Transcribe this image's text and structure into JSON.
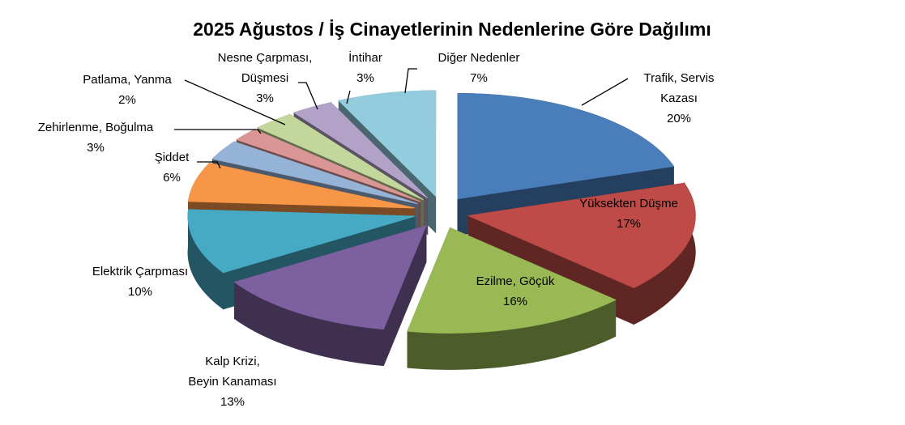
{
  "chart_data": {
    "type": "pie3d",
    "title": "2025 Ağustos / İş Cinayetlerinin Nedenlerine Göre Dağılımı",
    "labels": [
      [
        "Trafik, Servis",
        "Kazası"
      ],
      [
        "Yüksekten Düşme"
      ],
      [
        "Ezilme, Göçük"
      ],
      [
        "Kalp Krizi,",
        "Beyin Kanaması"
      ],
      [
        "Elektrik Çarpması"
      ],
      [
        "Şiddet"
      ],
      [
        "Zehirlenme, Boğulma"
      ],
      [
        "Patlama, Yanma"
      ],
      [
        "Nesne Çarpması,",
        "Düşmesi"
      ],
      [
        "İntihar"
      ],
      [
        "Diğer Nedenler"
      ]
    ],
    "values": [
      20,
      17,
      16,
      13,
      10,
      6,
      3,
      2,
      3,
      3,
      7
    ],
    "value_labels": [
      "20%",
      "17%",
      "16%",
      "13%",
      "10%",
      "6%",
      "3%",
      "2%",
      "3%",
      "3%",
      "7%"
    ],
    "colors": [
      "#4a7ebb",
      "#be4b48",
      "#98b954",
      "#7d60a0",
      "#46aac5",
      "#f79646",
      "#95b3d7",
      "#d99694",
      "#c3d69b",
      "#b3a2c7",
      "#93cddd"
    ]
  }
}
